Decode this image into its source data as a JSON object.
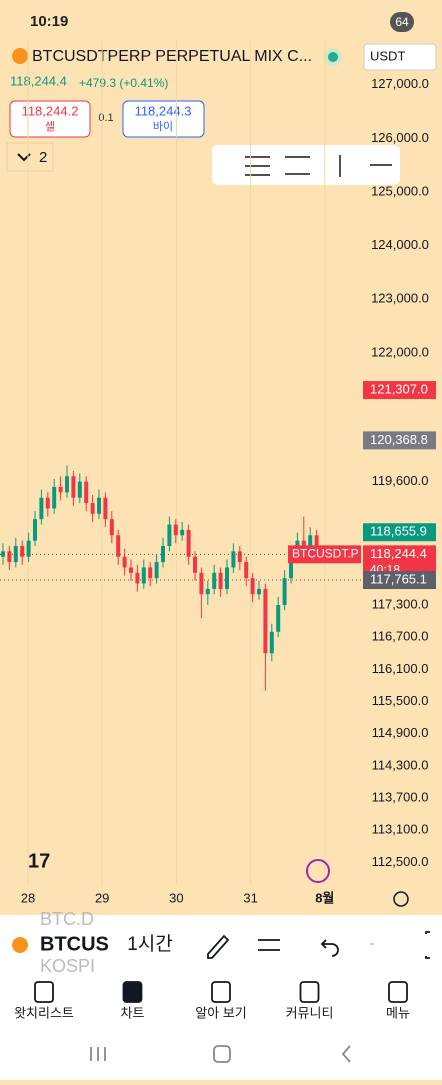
{
  "status_bar": {
    "time": "10:19",
    "battery": "64"
  },
  "header": {
    "symbol": "BTCUSDTPERP PERPETUAL MIX C...",
    "currency": "USDT",
    "last_price": "118,244.4",
    "change": "+479.3 (+0.41%)",
    "sell_price": "118,244.2",
    "sell_label": "셀",
    "spread": "0.1",
    "buy_price": "118,244.3",
    "buy_label": "바이",
    "indicators_count": "2"
  },
  "chart_data": {
    "type": "candlestick",
    "up_color": "#089981",
    "down_color": "#f23645",
    "candles": [
      [
        118200,
        118450,
        118050,
        118300
      ],
      [
        118300,
        118400,
        117950,
        118100
      ],
      [
        118100,
        118550,
        118000,
        118400
      ],
      [
        118400,
        118500,
        118050,
        118200
      ],
      [
        118200,
        118650,
        118100,
        118500
      ],
      [
        118500,
        119050,
        118400,
        118900
      ],
      [
        118900,
        119450,
        118800,
        119300
      ],
      [
        119300,
        119400,
        118950,
        119100
      ],
      [
        119100,
        119650,
        119000,
        119500
      ],
      [
        119500,
        119700,
        119250,
        119400
      ],
      [
        119400,
        119900,
        119300,
        119700
      ],
      [
        119700,
        119800,
        119150,
        119300
      ],
      [
        119300,
        119750,
        119200,
        119600
      ],
      [
        119600,
        119700,
        119050,
        119200
      ],
      [
        119200,
        119350,
        118850,
        119000
      ],
      [
        119000,
        119450,
        118900,
        119300
      ],
      [
        119300,
        119400,
        118750,
        118900
      ],
      [
        118900,
        119050,
        118450,
        118600
      ],
      [
        118600,
        118700,
        118050,
        118200
      ],
      [
        118200,
        118350,
        117850,
        118000
      ],
      [
        118000,
        118150,
        117750,
        117900
      ],
      [
        117900,
        118050,
        117550,
        117700
      ],
      [
        117700,
        118150,
        117600,
        118000
      ],
      [
        118000,
        118100,
        117650,
        117800
      ],
      [
        117800,
        118250,
        117700,
        118100
      ],
      [
        118100,
        118550,
        118000,
        118400
      ],
      [
        118400,
        118950,
        118300,
        118800
      ],
      [
        118800,
        118900,
        118450,
        118600
      ],
      [
        118600,
        118850,
        118500,
        118700
      ],
      [
        118700,
        118800,
        118050,
        118200
      ],
      [
        118200,
        118300,
        117750,
        117900
      ],
      [
        117900,
        118000,
        117050,
        117500
      ],
      [
        117500,
        117750,
        117300,
        117600
      ],
      [
        117600,
        118050,
        117500,
        117900
      ],
      [
        117900,
        118000,
        117450,
        117600
      ],
      [
        117600,
        118150,
        117500,
        118000
      ],
      [
        118000,
        118450,
        117900,
        118300
      ],
      [
        118300,
        118400,
        117950,
        118100
      ],
      [
        118100,
        118200,
        117650,
        117800
      ],
      [
        117800,
        117900,
        117350,
        117500
      ],
      [
        117500,
        117750,
        117400,
        117600
      ],
      [
        117600,
        117700,
        115700,
        116400
      ],
      [
        116400,
        116950,
        116250,
        116800
      ],
      [
        116800,
        117450,
        116700,
        117300
      ],
      [
        117300,
        117950,
        117200,
        117800
      ],
      [
        117800,
        118350,
        117700,
        118200
      ],
      [
        118200,
        118650,
        118100,
        118500
      ],
      [
        118500,
        118950,
        118200,
        118300
      ],
      [
        118300,
        118750,
        118200,
        118600
      ],
      [
        118600,
        118700,
        118100,
        118244.4
      ]
    ],
    "ylim": [
      111706,
      127834
    ],
    "yticks": [
      {
        "value": 127000,
        "label": "127,000.0"
      },
      {
        "value": 126000,
        "label": "126,000.0"
      },
      {
        "value": 125000,
        "label": "125,000.0"
      },
      {
        "value": 124000,
        "label": "124,000.0"
      },
      {
        "value": 123000,
        "label": "123,000.0"
      },
      {
        "value": 122000,
        "label": "122,000.0"
      },
      {
        "value": 119600,
        "label": "119,600.0"
      },
      {
        "value": 117300,
        "label": "117,300.0"
      },
      {
        "value": 116700,
        "label": "116,700.0"
      },
      {
        "value": 116100,
        "label": "116,100.0"
      },
      {
        "value": 115500,
        "label": "115,500.0"
      },
      {
        "value": 114900,
        "label": "114,900.0"
      },
      {
        "value": 114300,
        "label": "114,300.0"
      },
      {
        "value": 113700,
        "label": "113,700.0"
      },
      {
        "value": 113100,
        "label": "113,100.0"
      },
      {
        "value": 112500,
        "label": "112,500.0"
      }
    ],
    "xticks": [
      "28",
      "29",
      "30",
      "31",
      "8월"
    ],
    "price_tags": [
      {
        "value": 121307.0,
        "label": "121,307.0",
        "color": "#f23645"
      },
      {
        "value": 120368.8,
        "label": "120,368.8",
        "color": "#787b86"
      },
      {
        "value": 118655.9,
        "label": "118,655.9",
        "color": "#089981"
      },
      {
        "value": 118244.4,
        "label": "118,244.4",
        "color": "#f23645",
        "symbol": "BTCUSDT.P",
        "countdown": "40:18"
      },
      {
        "value": 117765.1,
        "label": "117,765.1",
        "color": "#5d606b"
      }
    ]
  },
  "toolbar": {
    "ghost_top": "BTC.D",
    "symbol": "BTCUS",
    "interval": "1시간",
    "ghost_bottom": "KOSPI"
  },
  "nav": [
    "왓치리스트",
    "차트",
    "알아 보기",
    "커뮤니티",
    "메뉴"
  ]
}
